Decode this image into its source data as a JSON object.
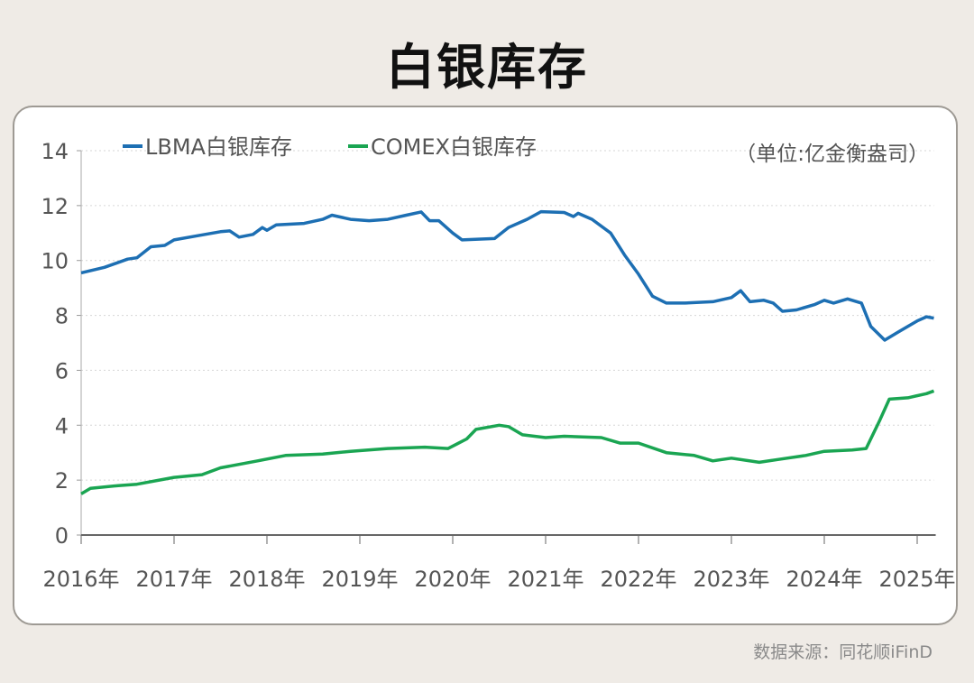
{
  "title": "白银库存",
  "source": "数据来源：同花顺iFinD",
  "chart_data": {
    "type": "line",
    "title": "白银库存",
    "unit": "（单位:亿金衡盎司）",
    "xlabel": "",
    "ylabel": "",
    "ylim": [
      0,
      14
    ],
    "yticks": [
      0,
      2,
      4,
      6,
      8,
      10,
      12,
      14
    ],
    "xlim": [
      2016.0,
      2025.18
    ],
    "xticks": [
      "2016年",
      "2017年",
      "2018年",
      "2019年",
      "2020年",
      "2021年",
      "2022年",
      "2023年",
      "2024年",
      "2025年"
    ],
    "grid": true,
    "legend": "top-left",
    "series": [
      {
        "name": "LBMA白银库存",
        "color": "#1d6fb3",
        "points": [
          [
            2016.0,
            9.55
          ],
          [
            2016.25,
            9.75
          ],
          [
            2016.5,
            10.05
          ],
          [
            2016.6,
            10.1
          ],
          [
            2016.75,
            10.5
          ],
          [
            2016.9,
            10.55
          ],
          [
            2017.0,
            10.75
          ],
          [
            2017.25,
            10.9
          ],
          [
            2017.5,
            11.05
          ],
          [
            2017.6,
            11.08
          ],
          [
            2017.7,
            10.85
          ],
          [
            2017.85,
            10.95
          ],
          [
            2017.95,
            11.2
          ],
          [
            2018.0,
            11.1
          ],
          [
            2018.1,
            11.3
          ],
          [
            2018.4,
            11.35
          ],
          [
            2018.6,
            11.5
          ],
          [
            2018.7,
            11.65
          ],
          [
            2018.9,
            11.5
          ],
          [
            2019.1,
            11.45
          ],
          [
            2019.3,
            11.5
          ],
          [
            2019.5,
            11.65
          ],
          [
            2019.66,
            11.77
          ],
          [
            2019.75,
            11.45
          ],
          [
            2019.85,
            11.45
          ],
          [
            2020.0,
            11.0
          ],
          [
            2020.1,
            10.75
          ],
          [
            2020.3,
            10.78
          ],
          [
            2020.45,
            10.8
          ],
          [
            2020.6,
            11.2
          ],
          [
            2020.8,
            11.5
          ],
          [
            2020.95,
            11.78
          ],
          [
            2021.2,
            11.75
          ],
          [
            2021.3,
            11.6
          ],
          [
            2021.35,
            11.72
          ],
          [
            2021.5,
            11.5
          ],
          [
            2021.7,
            11.0
          ],
          [
            2021.85,
            10.2
          ],
          [
            2022.0,
            9.5
          ],
          [
            2022.15,
            8.7
          ],
          [
            2022.3,
            8.45
          ],
          [
            2022.5,
            8.45
          ],
          [
            2022.8,
            8.5
          ],
          [
            2023.0,
            8.65
          ],
          [
            2023.1,
            8.9
          ],
          [
            2023.2,
            8.5
          ],
          [
            2023.35,
            8.55
          ],
          [
            2023.45,
            8.45
          ],
          [
            2023.55,
            8.15
          ],
          [
            2023.7,
            8.2
          ],
          [
            2023.9,
            8.4
          ],
          [
            2024.0,
            8.55
          ],
          [
            2024.1,
            8.45
          ],
          [
            2024.25,
            8.6
          ],
          [
            2024.4,
            8.45
          ],
          [
            2024.5,
            7.6
          ],
          [
            2024.65,
            7.1
          ],
          [
            2024.8,
            7.4
          ],
          [
            2025.0,
            7.8
          ],
          [
            2025.1,
            7.95
          ],
          [
            2025.18,
            7.9
          ]
        ]
      },
      {
        "name": "COMEX白银库存",
        "color": "#1aa552",
        "points": [
          [
            2016.0,
            1.5
          ],
          [
            2016.1,
            1.7
          ],
          [
            2016.4,
            1.8
          ],
          [
            2016.6,
            1.85
          ],
          [
            2017.0,
            2.1
          ],
          [
            2017.3,
            2.2
          ],
          [
            2017.5,
            2.45
          ],
          [
            2017.9,
            2.7
          ],
          [
            2018.2,
            2.9
          ],
          [
            2018.6,
            2.95
          ],
          [
            2018.9,
            3.05
          ],
          [
            2019.3,
            3.15
          ],
          [
            2019.7,
            3.2
          ],
          [
            2019.95,
            3.15
          ],
          [
            2020.15,
            3.5
          ],
          [
            2020.25,
            3.85
          ],
          [
            2020.5,
            4.0
          ],
          [
            2020.6,
            3.95
          ],
          [
            2020.75,
            3.65
          ],
          [
            2021.0,
            3.55
          ],
          [
            2021.2,
            3.6
          ],
          [
            2021.6,
            3.55
          ],
          [
            2021.8,
            3.35
          ],
          [
            2022.0,
            3.35
          ],
          [
            2022.3,
            3.0
          ],
          [
            2022.6,
            2.9
          ],
          [
            2022.8,
            2.7
          ],
          [
            2023.0,
            2.8
          ],
          [
            2023.3,
            2.65
          ],
          [
            2023.5,
            2.75
          ],
          [
            2023.8,
            2.9
          ],
          [
            2024.0,
            3.05
          ],
          [
            2024.3,
            3.1
          ],
          [
            2024.45,
            3.15
          ],
          [
            2024.6,
            4.2
          ],
          [
            2024.7,
            4.95
          ],
          [
            2024.9,
            5.0
          ],
          [
            2025.1,
            5.15
          ],
          [
            2025.18,
            5.25
          ]
        ]
      }
    ]
  }
}
